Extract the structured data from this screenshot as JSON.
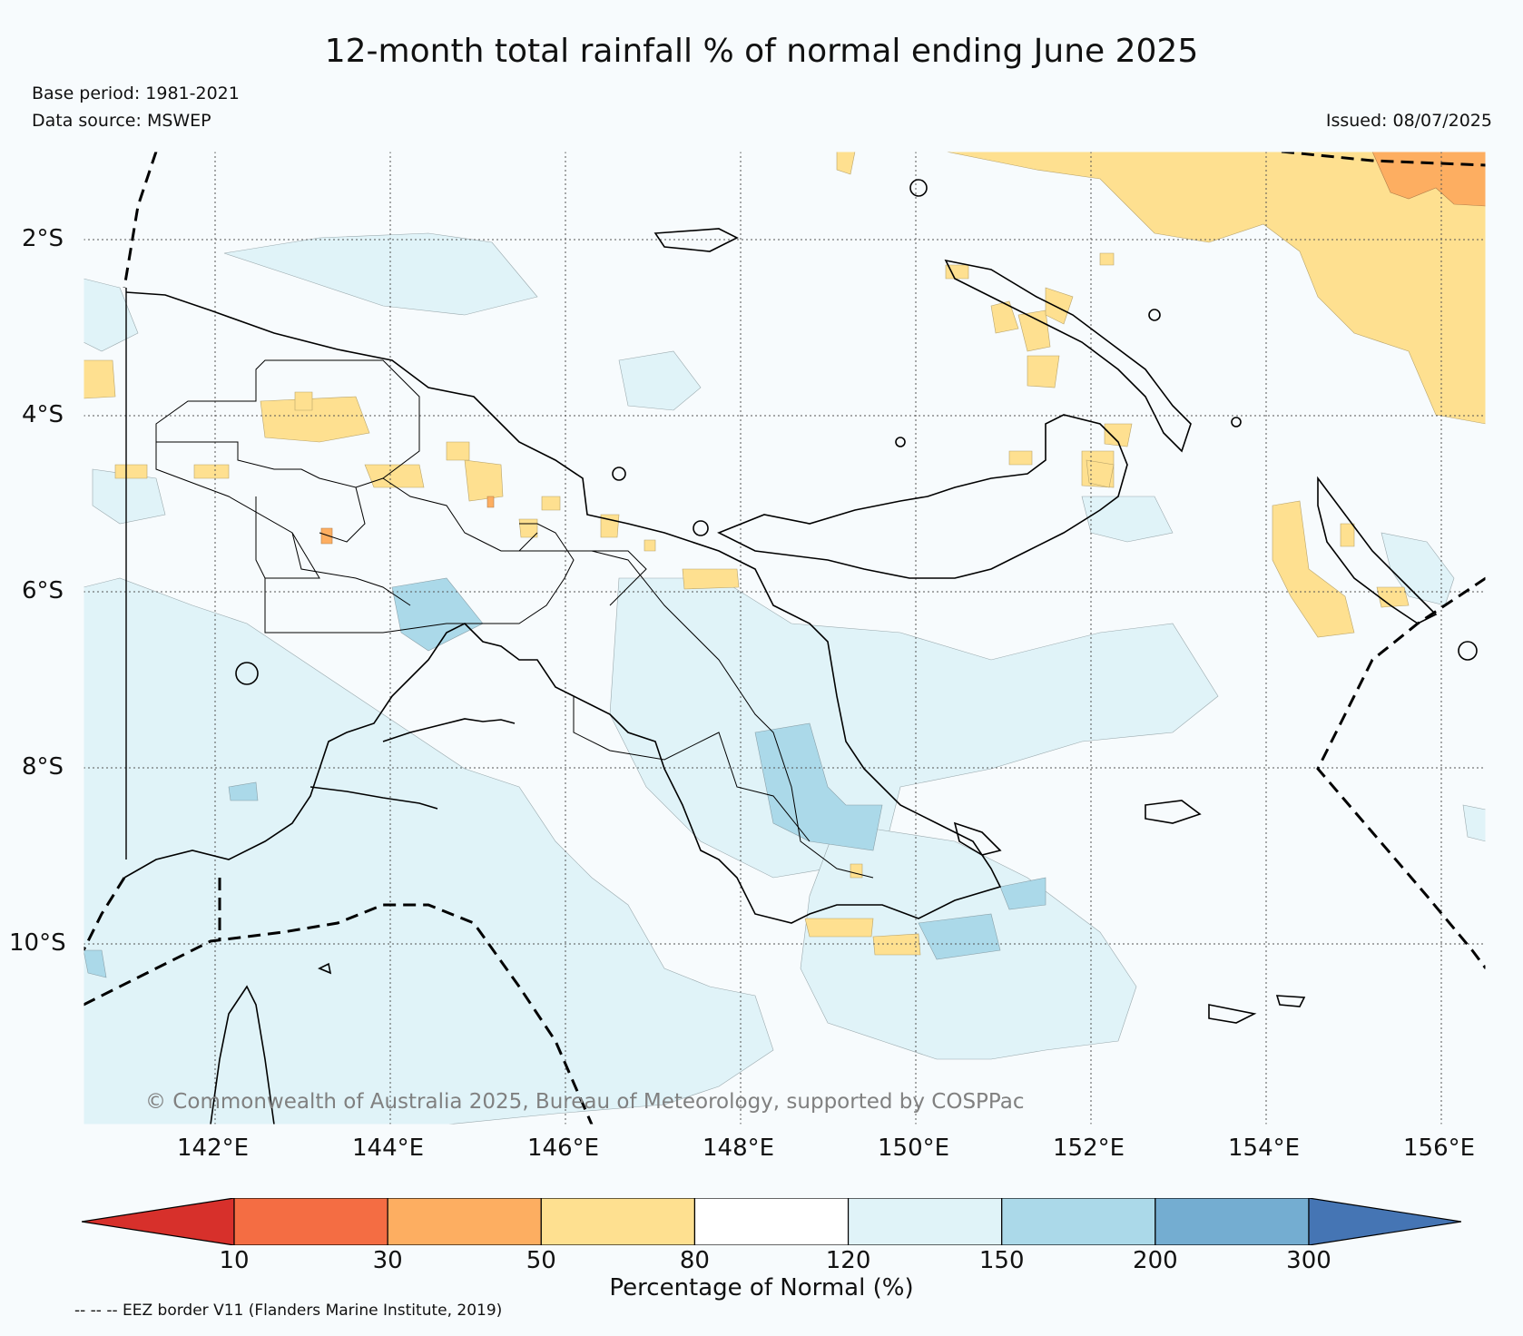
{
  "title": "12-month total rainfall % of normal ending June 2025",
  "base_period": "Base period: 1981-2021",
  "data_source": "Data source: MSWEP",
  "issued": "Issued: 08/07/2025",
  "copyright": "© Commonwealth of Australia 2025, Bureau of Meteorology, supported by COSPPac",
  "eez_note": "-- -- -- EEZ border V11 (Flanders Marine Institute, 2019)",
  "map": {
    "lat_labels": [
      "2°S",
      "4°S",
      "6°S",
      "8°S",
      "10°S"
    ],
    "lon_labels": [
      "142°E",
      "144°E",
      "146°E",
      "148°E",
      "150°E",
      "152°E",
      "154°E",
      "156°E"
    ]
  },
  "colorbar": {
    "title": "Percentage of Normal (%)",
    "ticks": [
      "10",
      "30",
      "50",
      "80",
      "120",
      "150",
      "200",
      "300"
    ],
    "colors": [
      "#d7302b",
      "#f46d43",
      "#fdae61",
      "#fee090",
      "#ffffff",
      "#e0f3f8",
      "#abd9e9",
      "#74add1",
      "#4575b4"
    ]
  },
  "colors": {
    "background": "#f7fbfd",
    "land_outline": "#000000",
    "grid": "#555555"
  }
}
